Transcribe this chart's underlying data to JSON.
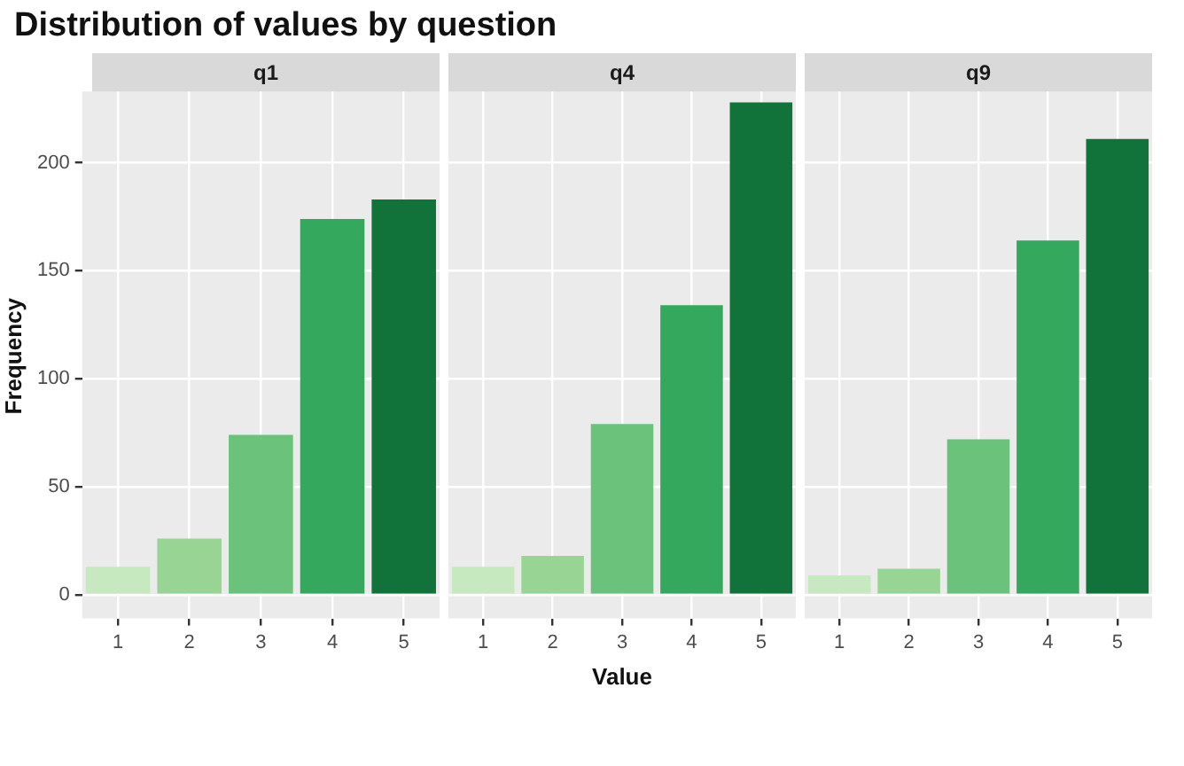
{
  "chart_data": [
    {
      "type": "bar",
      "title": "Distribution of values by question",
      "subtitle": "q1",
      "ylabel": "Frequency",
      "categories": [
        "1",
        "2",
        "3",
        "4",
        "5"
      ],
      "values": [
        13,
        26,
        74,
        174,
        183
      ],
      "colors": [
        "#c7e9c0",
        "#98d594",
        "#6bc27a",
        "#34a85c",
        "#11723a"
      ],
      "ylim": [
        -11,
        233
      ],
      "yticks": [
        0,
        50,
        100,
        150,
        200
      ],
      "grid": true
    },
    {
      "type": "bar",
      "subtitle": "q4",
      "xlabel": "Value",
      "categories": [
        "1",
        "2",
        "3",
        "4",
        "5"
      ],
      "values": [
        13,
        18,
        79,
        134,
        228
      ],
      "colors": [
        "#c7e9c0",
        "#98d594",
        "#6bc27a",
        "#34a85c",
        "#11723a"
      ],
      "ylim": [
        -11,
        233
      ],
      "yticks": [
        0,
        50,
        100,
        150,
        200
      ],
      "grid": true,
      "tick_labels": "x"
    },
    {
      "type": "bar",
      "subtitle": "q9",
      "categories": [
        "1",
        "2",
        "3",
        "4",
        "5"
      ],
      "values": [
        9,
        12,
        72,
        164,
        211
      ],
      "colors": [
        "#c7e9c0",
        "#98d594",
        "#6bc27a",
        "#34a85c",
        "#11723a"
      ],
      "ylim": [
        -11,
        233
      ],
      "yticks": [
        0,
        50,
        100,
        150,
        200
      ],
      "grid": true,
      "tick_labels": "x"
    }
  ]
}
